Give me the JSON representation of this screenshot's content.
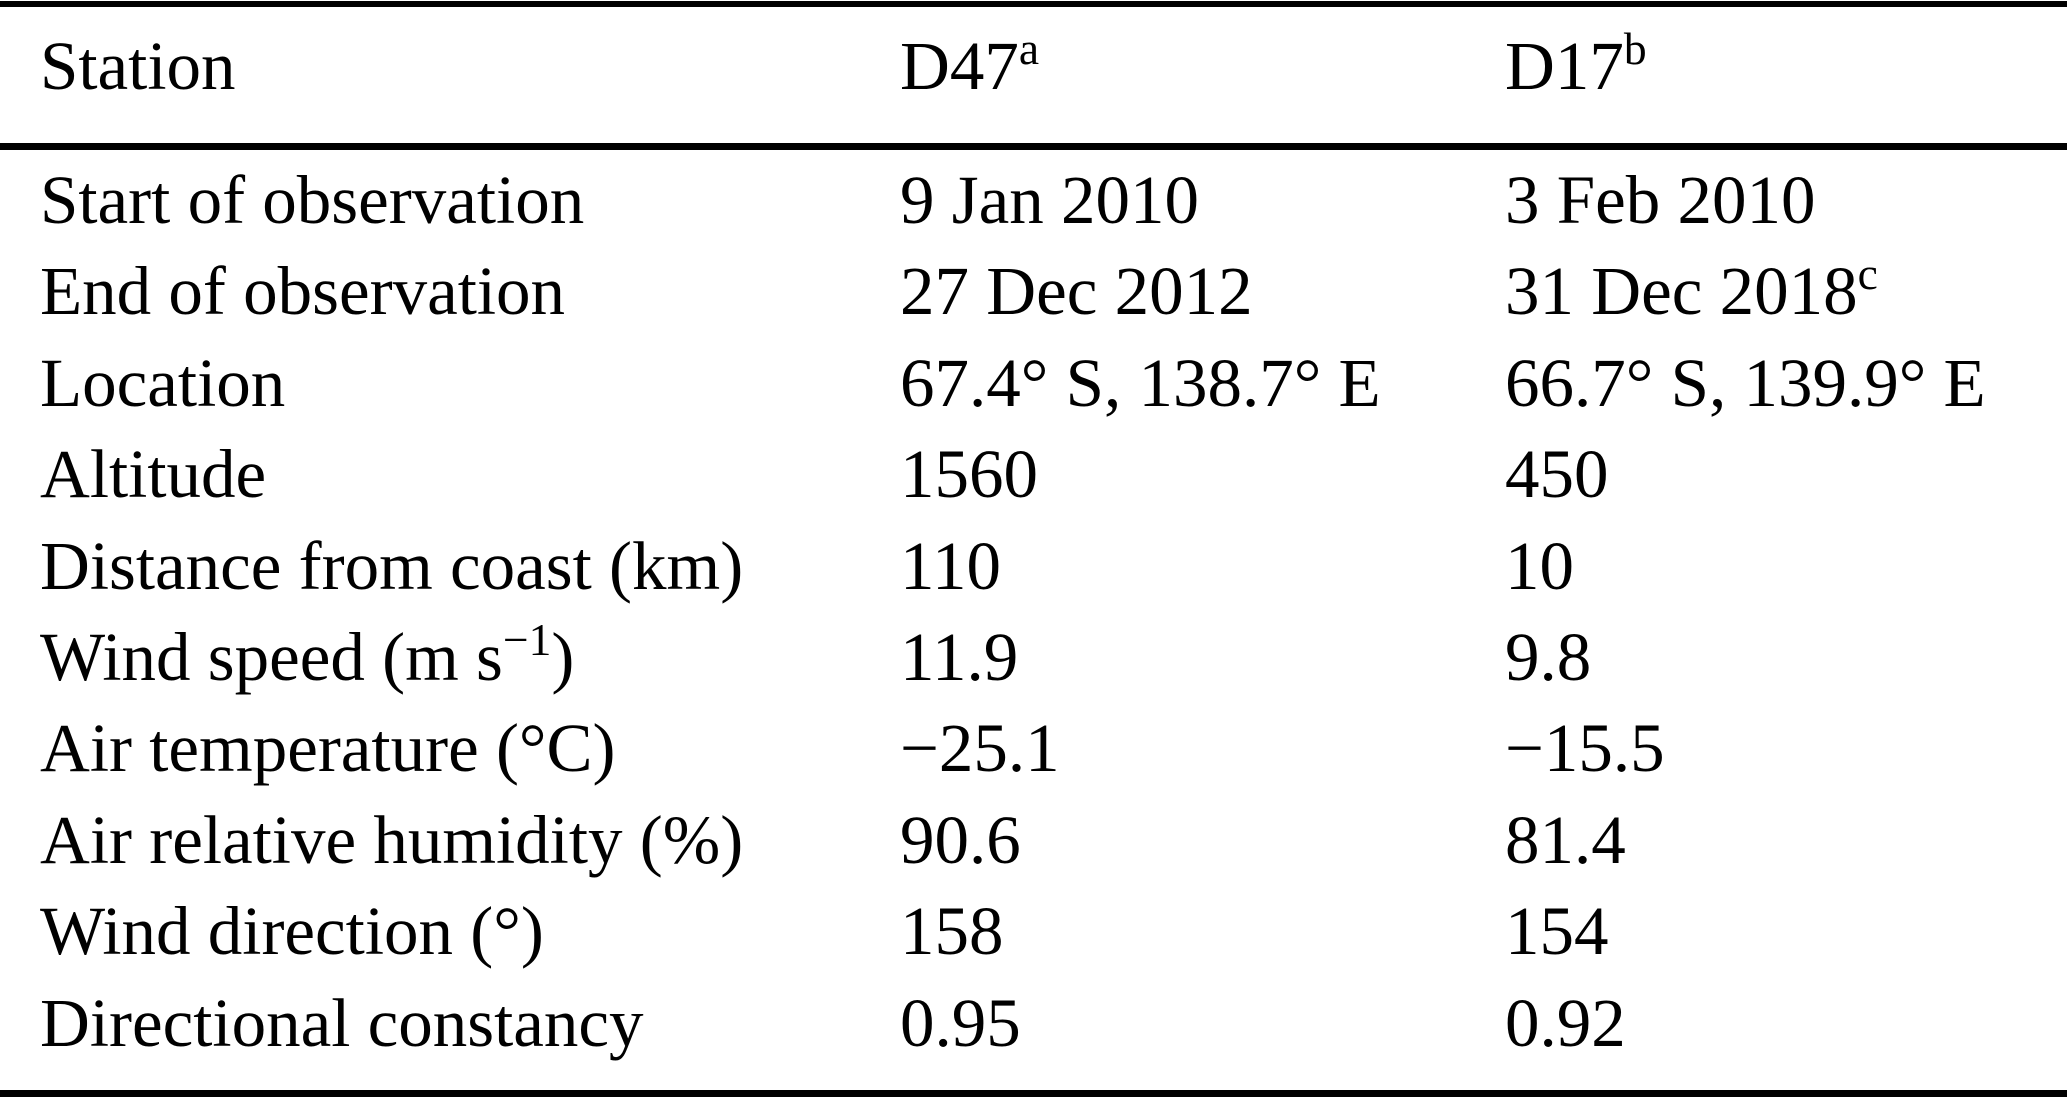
{
  "table": {
    "header": {
      "station_label": "Station",
      "col_d47": {
        "text": "D47",
        "sup": "a"
      },
      "col_d17": {
        "text": "D17",
        "sup": "b"
      }
    },
    "rows": [
      {
        "label": "Start of observation",
        "d47": "9 Jan 2010",
        "d17": "3 Feb 2010"
      },
      {
        "label": "End of observation",
        "d47": "27 Dec 2012",
        "d17": "31 Dec 2018",
        "d17_sup": "c"
      },
      {
        "label": "Location",
        "d47": "67.4° S, 138.7° E",
        "d17": "66.7° S, 139.9° E"
      },
      {
        "label": "Altitude",
        "d47": "1560",
        "d17": "450"
      },
      {
        "label": "Distance from coast (km)",
        "d47": "110",
        "d17": "10"
      },
      {
        "label": "Wind speed (m s",
        "label_sup": "−1",
        "label_post": ")",
        "d47": "11.9",
        "d17": "9.8"
      },
      {
        "label": "Air temperature (°C)",
        "d47": "−25.1",
        "d17": "−15.5"
      },
      {
        "label": "Air relative humidity (%)",
        "d47": "90.6",
        "d17": "81.4"
      },
      {
        "label": "Wind direction (°)",
        "d47": "158",
        "d17": "154"
      },
      {
        "label": "Directional constancy",
        "d47": "0.95",
        "d17": "0.92"
      }
    ],
    "rule_color": "#000000",
    "text_color": "#000000",
    "background_color": "#ffffff"
  }
}
